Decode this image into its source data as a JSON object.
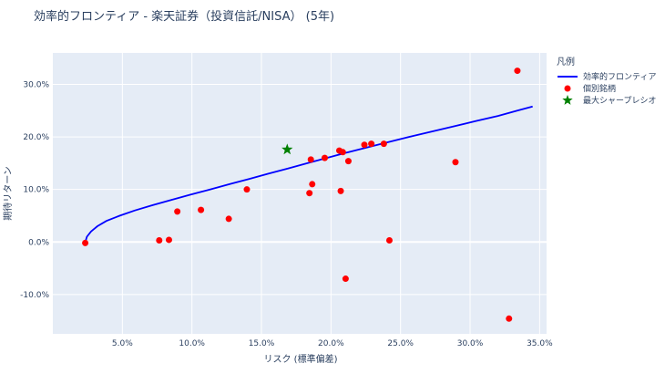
{
  "chart_data": {
    "type": "scatter",
    "title": "効率的フロンティア - 楽天証券（投資信託/NISA） (5年)",
    "xlabel": "リスク (標準偏差)",
    "ylabel": "期待リターン",
    "xlim": [
      0.0,
      0.355
    ],
    "ylim": [
      -0.175,
      0.36
    ],
    "xticks": [
      {
        "value": 0.05,
        "label": "5.0%"
      },
      {
        "value": 0.1,
        "label": "10.0%"
      },
      {
        "value": 0.15,
        "label": "15.0%"
      },
      {
        "value": 0.2,
        "label": "20.0%"
      },
      {
        "value": 0.25,
        "label": "25.0%"
      },
      {
        "value": 0.3,
        "label": "30.0%"
      },
      {
        "value": 0.35,
        "label": "35.0%"
      }
    ],
    "yticks": [
      {
        "value": -0.1,
        "label": "-10.0%"
      },
      {
        "value": 0.0,
        "label": "0.0%"
      },
      {
        "value": 0.1,
        "label": "10.0%"
      },
      {
        "value": 0.2,
        "label": "20.0%"
      },
      {
        "value": 0.3,
        "label": "30.0%"
      }
    ],
    "grid": true,
    "legend_title": "凡例",
    "legend_position": "right",
    "series": [
      {
        "name": "効率的フロンティア",
        "kind": "line",
        "color": "#0000ff",
        "points": [
          [
            0.0233,
            0.0
          ],
          [
            0.0245,
            0.01
          ],
          [
            0.0275,
            0.02
          ],
          [
            0.032,
            0.03
          ],
          [
            0.0385,
            0.04
          ],
          [
            0.048,
            0.05
          ],
          [
            0.059,
            0.06
          ],
          [
            0.0715,
            0.07
          ],
          [
            0.085,
            0.08
          ],
          [
            0.099,
            0.09
          ],
          [
            0.113,
            0.1
          ],
          [
            0.127,
            0.11
          ],
          [
            0.141,
            0.12
          ],
          [
            0.155,
            0.13
          ],
          [
            0.169,
            0.14
          ],
          [
            0.183,
            0.15
          ],
          [
            0.197,
            0.16
          ],
          [
            0.211,
            0.17
          ],
          [
            0.226,
            0.18
          ],
          [
            0.241,
            0.19
          ],
          [
            0.256,
            0.2
          ],
          [
            0.272,
            0.21
          ],
          [
            0.288,
            0.22
          ],
          [
            0.304,
            0.23
          ],
          [
            0.32,
            0.24
          ],
          [
            0.334,
            0.25
          ],
          [
            0.345,
            0.258
          ]
        ]
      },
      {
        "name": "個別銘柄",
        "kind": "markers",
        "color": "#ff0000",
        "points": [
          [
            0.0233,
            -0.002
          ],
          [
            0.0765,
            0.003
          ],
          [
            0.0835,
            0.004
          ],
          [
            0.0895,
            0.058
          ],
          [
            0.1065,
            0.061
          ],
          [
            0.1265,
            0.044
          ],
          [
            0.1395,
            0.1
          ],
          [
            0.1845,
            0.093
          ],
          [
            0.1855,
            0.157
          ],
          [
            0.1865,
            0.11
          ],
          [
            0.1955,
            0.16
          ],
          [
            0.206,
            0.174
          ],
          [
            0.207,
            0.097
          ],
          [
            0.2085,
            0.171
          ],
          [
            0.2105,
            -0.07
          ],
          [
            0.2125,
            0.154
          ],
          [
            0.224,
            0.185
          ],
          [
            0.229,
            0.187
          ],
          [
            0.238,
            0.187
          ],
          [
            0.242,
            0.003
          ],
          [
            0.2895,
            0.152
          ],
          [
            0.328,
            -0.146
          ],
          [
            0.334,
            0.326
          ]
        ]
      },
      {
        "name": "最大シャープレシオ",
        "kind": "star",
        "color": "#008000",
        "points": [
          [
            0.1685,
            0.176
          ]
        ]
      }
    ]
  }
}
